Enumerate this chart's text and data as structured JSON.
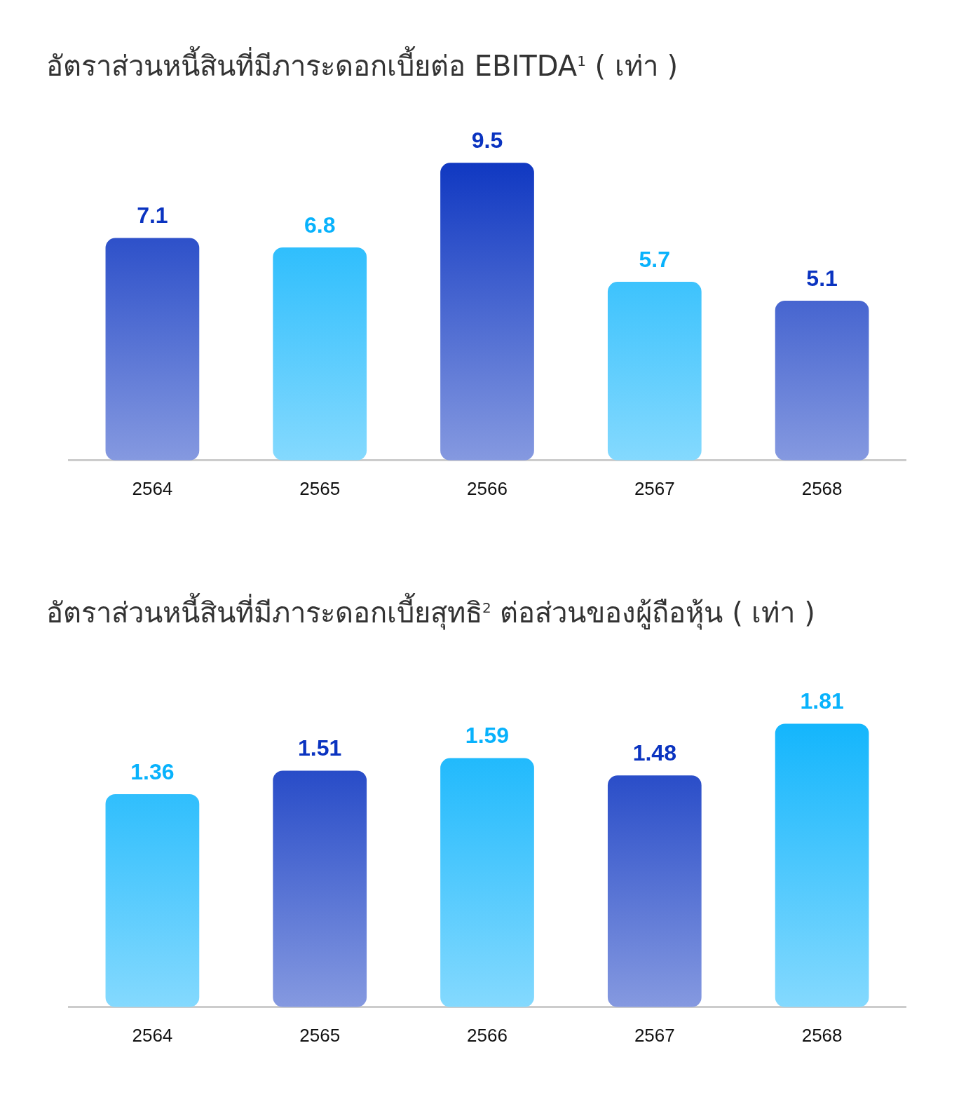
{
  "chart_data": [
    {
      "type": "bar",
      "title": "อัตราส่วนหนี้สินที่มีภาระดอกเบี้ยต่อ EBITDA$^{1}$  ( เท่า )",
      "categories": [
        "2564",
        "2565",
        "2566",
        "2567",
        "2568"
      ],
      "values": [
        7.1,
        6.8,
        9.5,
        5.7,
        5.1
      ],
      "colors": [
        "#0a33c0",
        "#08b2fc",
        "#0a33c0",
        "#08b2fc",
        "#0a33c0"
      ],
      "data_labels": true,
      "grid": false,
      "legend": false
    },
    {
      "type": "bar",
      "title": "อัตราส่วนหนี้สินที่มีภาระดอกเบี้ยสุทธิ$^{2}$ ต่อส่วนของผู้ถือหุ้น  ( เท่า )",
      "categories": [
        "2564",
        "2565",
        "2566",
        "2567",
        "2568"
      ],
      "values": [
        1.36,
        1.51,
        1.59,
        1.48,
        1.81
      ],
      "colors": [
        "#08b2fc",
        "#0a33c0",
        "#08b2fc",
        "#0a33c0",
        "#08b2fc"
      ],
      "data_labels": true,
      "grid": false,
      "legend": false
    }
  ]
}
